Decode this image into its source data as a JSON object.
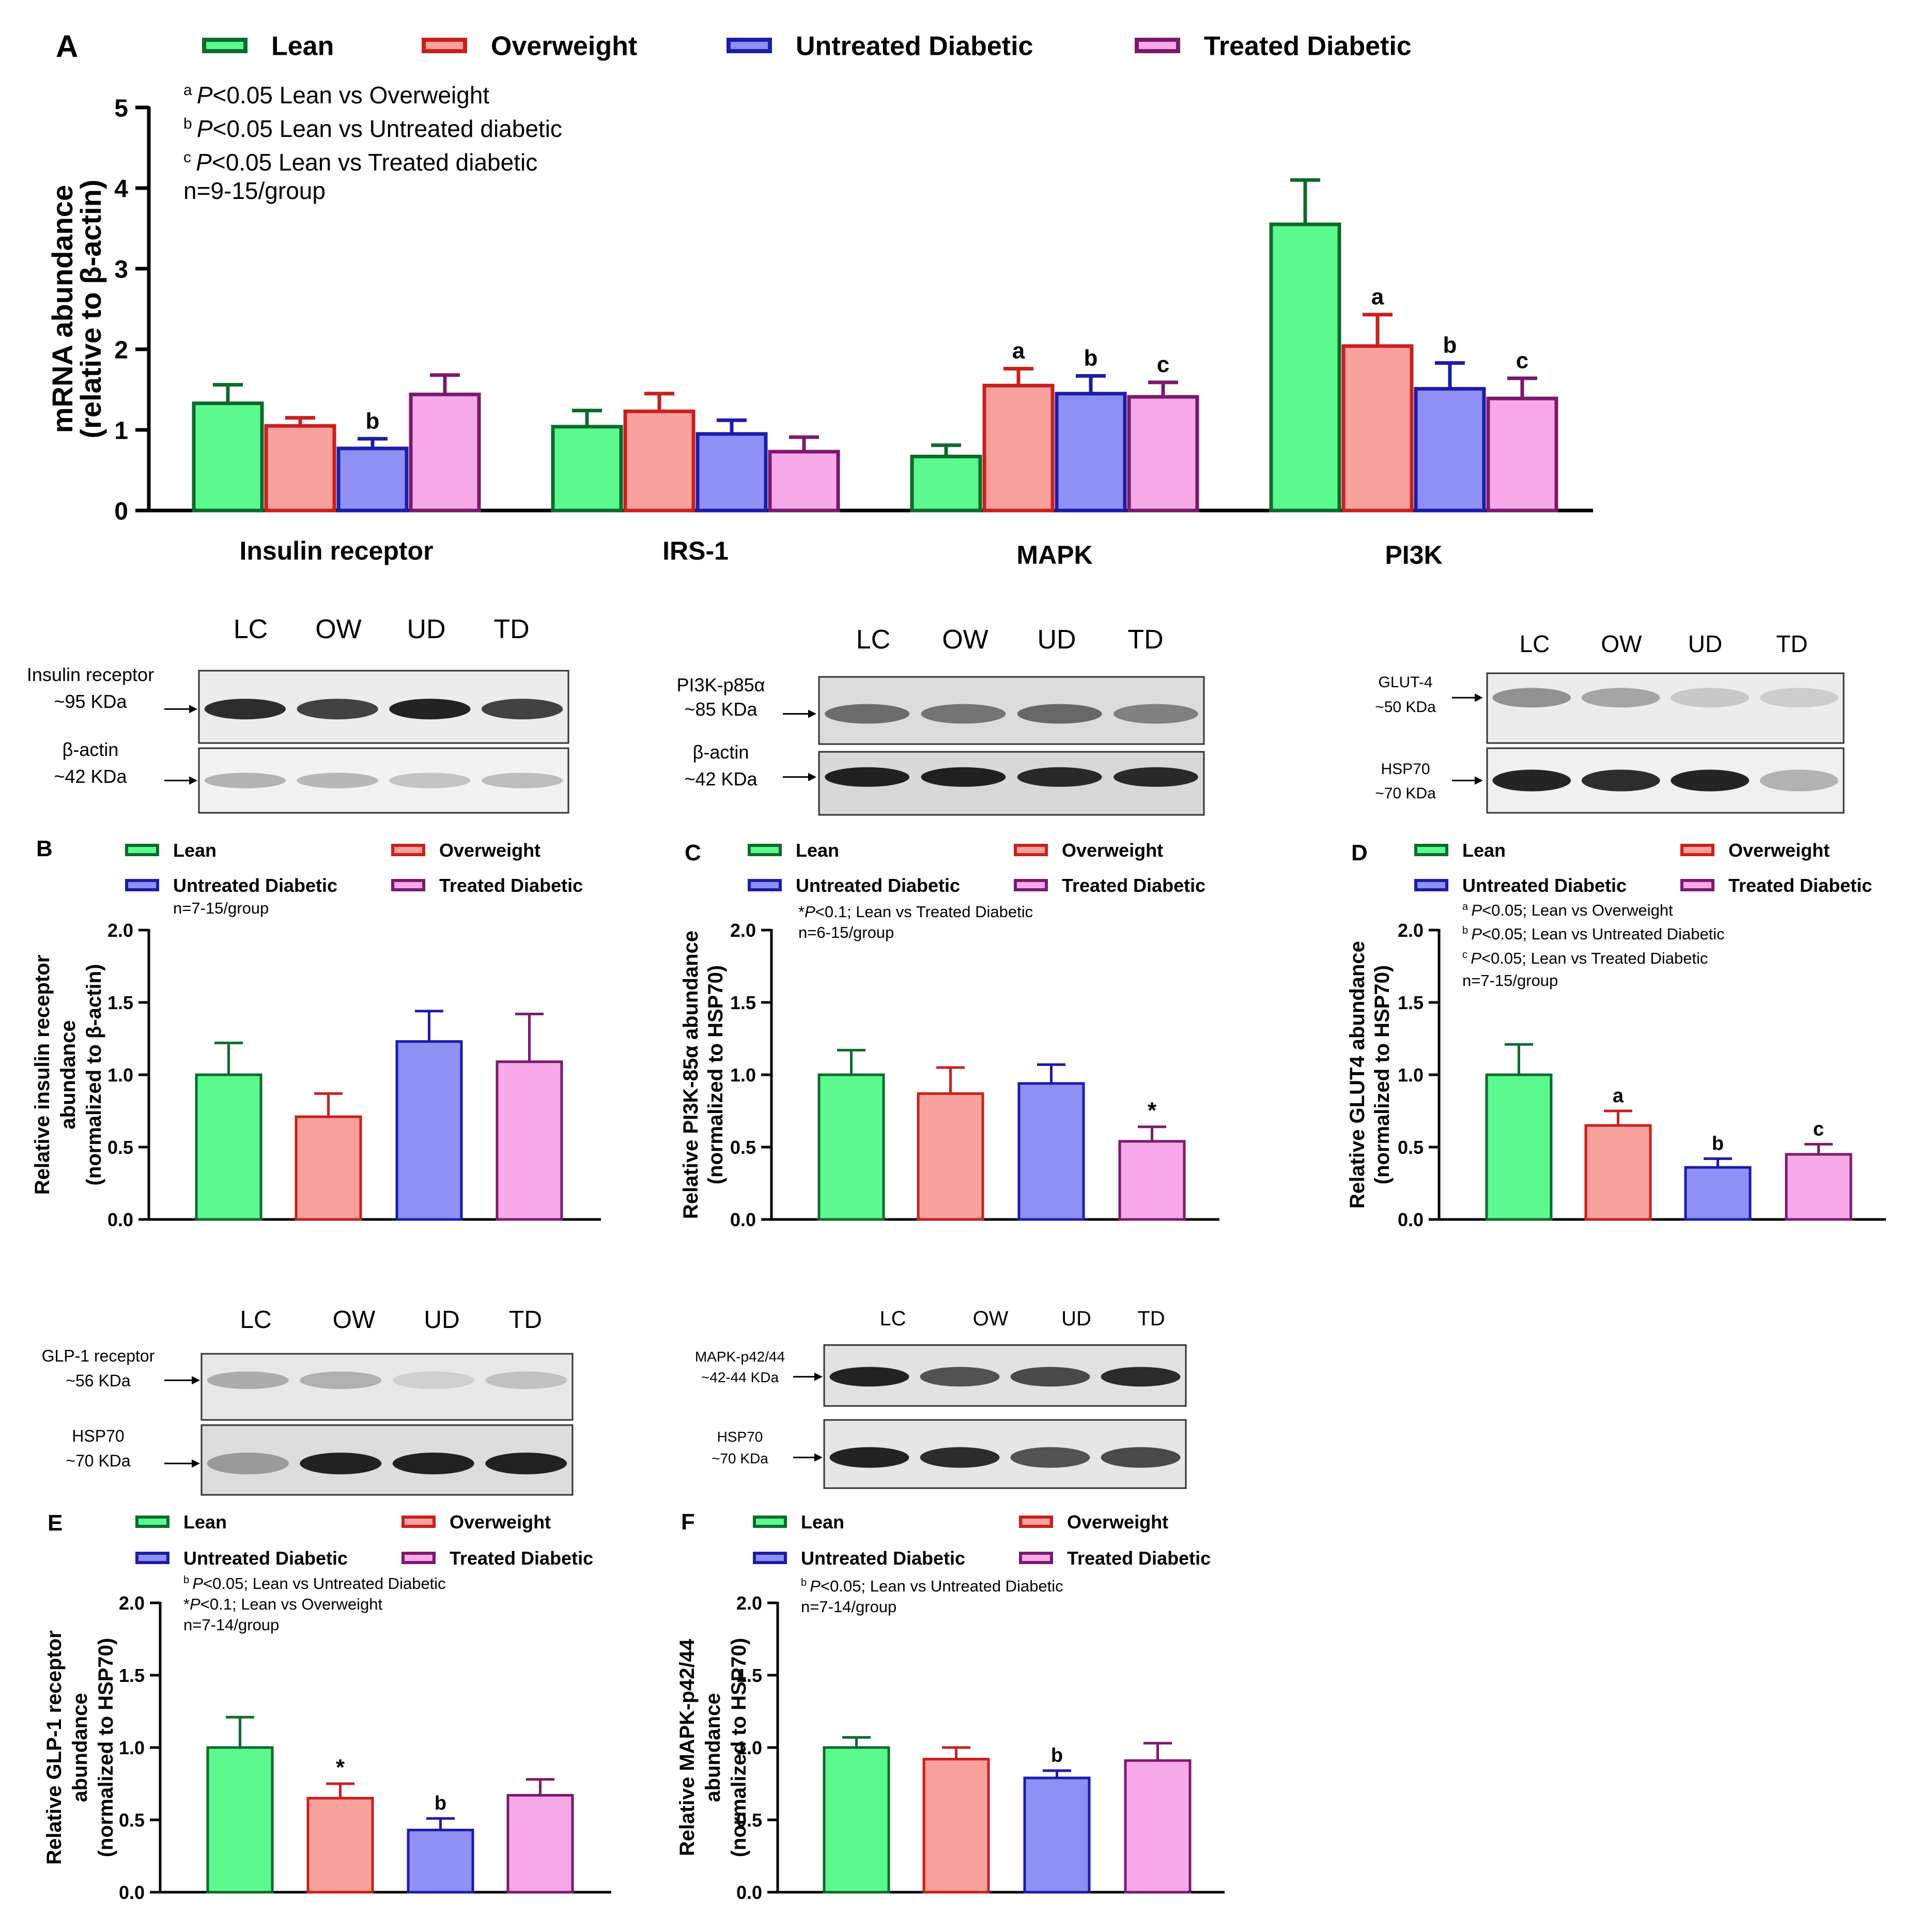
{
  "colors": {
    "lean": {
      "fill": "#5cf98f",
      "stroke": "#0d6b2c"
    },
    "overweight": {
      "fill": "#f9a19c",
      "stroke": "#c8201e"
    },
    "untreated": {
      "fill": "#8f8ff4",
      "stroke": "#1c1ca8"
    },
    "treated": {
      "fill": "#f8a9ea",
      "stroke": "#7a1a6b"
    }
  },
  "chart_data": [
    {
      "id": "A",
      "type": "bar",
      "panel_label": "A",
      "legend": [
        "Lean",
        "Overweight",
        "Untreated Diabetic",
        "Treated Diabetic"
      ],
      "annotations": [
        "a P<0.05 Lean vs Overweight",
        "b P<0.05 Lean vs Untreated diabetic",
        "c P<0.05 Lean vs Treated diabetic",
        "n=9-15/group"
      ],
      "ylabel_lines": [
        "mRNA abundance",
        "(relative to β-actin)"
      ],
      "ylim": [
        0,
        5
      ],
      "yticks": [
        "0",
        "1",
        "2",
        "3",
        "4",
        "5"
      ],
      "categories": [
        "Insulin receptor",
        "IRS-1",
        "MAPK",
        "PI3K"
      ],
      "series": [
        {
          "name": "Lean",
          "values": [
            1.33,
            1.04,
            0.67,
            3.55
          ],
          "errors": [
            0.23,
            0.2,
            0.14,
            0.55
          ],
          "sig": [
            "",
            "",
            "",
            ""
          ]
        },
        {
          "name": "Overweight",
          "values": [
            1.05,
            1.23,
            1.55,
            2.04
          ],
          "errors": [
            0.1,
            0.22,
            0.21,
            0.39
          ],
          "sig": [
            "",
            "",
            "a",
            "a"
          ]
        },
        {
          "name": "Untreated Diabetic",
          "values": [
            0.77,
            0.95,
            1.45,
            1.51
          ],
          "errors": [
            0.12,
            0.17,
            0.22,
            0.32
          ],
          "sig": [
            "b",
            "",
            "b",
            "b"
          ]
        },
        {
          "name": "Treated Diabetic",
          "values": [
            1.44,
            0.73,
            1.41,
            1.39
          ],
          "errors": [
            0.24,
            0.18,
            0.18,
            0.25
          ],
          "sig": [
            "",
            "",
            "c",
            "c"
          ]
        }
      ]
    },
    {
      "id": "B",
      "type": "bar",
      "panel_label": "B",
      "legend": [
        "Lean",
        "Overweight",
        "Untreated Diabetic",
        "Treated Diabetic"
      ],
      "annotations": [
        "n=7-15/group"
      ],
      "ylabel_lines": [
        "Relative insulin receptor",
        "abundance",
        "(normalized to β-actin)"
      ],
      "ylim": [
        0,
        2
      ],
      "yticks": [
        "0.0",
        "0.5",
        "1.0",
        "1.5",
        "2.0"
      ],
      "categories": [
        "Lean",
        "Overweight",
        "Untreated Diabetic",
        "Treated Diabetic"
      ],
      "values": [
        1.0,
        0.71,
        1.23,
        1.09
      ],
      "errors": [
        0.22,
        0.16,
        0.21,
        0.33
      ],
      "sig": [
        "",
        "",
        "",
        ""
      ]
    },
    {
      "id": "C",
      "type": "bar",
      "panel_label": "C",
      "legend": [
        "Lean",
        "Overweight",
        "Untreated Diabetic",
        "Treated Diabetic"
      ],
      "annotations": [
        "*P<0.1; Lean vs Treated Diabetic",
        "n=6-15/group"
      ],
      "ylabel_lines": [
        "Relative PI3K-85α abundance",
        "(normalized to HSP70)"
      ],
      "ylim": [
        0,
        2
      ],
      "yticks": [
        "0.0",
        "0.5",
        "1.0",
        "1.5",
        "2.0"
      ],
      "categories": [
        "Lean",
        "Overweight",
        "Untreated Diabetic",
        "Treated Diabetic"
      ],
      "values": [
        1.0,
        0.87,
        0.94,
        0.54
      ],
      "errors": [
        0.17,
        0.18,
        0.13,
        0.1
      ],
      "sig": [
        "",
        "",
        "",
        "*"
      ]
    },
    {
      "id": "D",
      "type": "bar",
      "panel_label": "D",
      "legend": [
        "Lean",
        "Overweight",
        "Untreated Diabetic",
        "Treated Diabetic"
      ],
      "annotations": [
        "aP<0.05; Lean vs Overweight",
        "bP<0.05; Lean vs Untreated Diabetic",
        "cP<0.05; Lean vs Treated Diabetic",
        "n=7-15/group"
      ],
      "ylabel_lines": [
        "Relative GLUT4 abundance",
        "(normalized to HSP70)"
      ],
      "ylim": [
        0,
        2
      ],
      "yticks": [
        "0.0",
        "0.5",
        "1.0",
        "1.5",
        "2.0"
      ],
      "categories": [
        "Lean",
        "Overweight",
        "Untreated Diabetic",
        "Treated Diabetic"
      ],
      "values": [
        1.0,
        0.65,
        0.36,
        0.45
      ],
      "errors": [
        0.21,
        0.1,
        0.06,
        0.07
      ],
      "sig": [
        "",
        "a",
        "b",
        "c"
      ]
    },
    {
      "id": "E",
      "type": "bar",
      "panel_label": "E",
      "legend": [
        "Lean",
        "Overweight",
        "Untreated Diabetic",
        "Treated Diabetic"
      ],
      "annotations": [
        "bP<0.05; Lean vs Untreated Diabetic",
        "*P<0.1; Lean vs Overweight",
        "n=7-14/group"
      ],
      "ylabel_lines": [
        "Relative GLP-1 receptor",
        "abundance",
        "(normalized to HSP70)"
      ],
      "ylim": [
        0,
        2
      ],
      "yticks": [
        "0.0",
        "0.5",
        "1.0",
        "1.5",
        "2.0"
      ],
      "categories": [
        "Lean",
        "Overweight",
        "Untreated Diabetic",
        "Treated Diabetic"
      ],
      "values": [
        1.0,
        0.65,
        0.43,
        0.67
      ],
      "errors": [
        0.21,
        0.1,
        0.08,
        0.11
      ],
      "sig": [
        "",
        "*",
        "b",
        ""
      ]
    },
    {
      "id": "F",
      "type": "bar",
      "panel_label": "F",
      "legend": [
        "Lean",
        "Overweight",
        "Untreated Diabetic",
        "Treated Diabetic"
      ],
      "annotations": [
        "bP<0.05; Lean vs Untreated Diabetic",
        "n=7-14/group"
      ],
      "ylabel_lines": [
        "Relative MAPK-p42/44",
        "abundance",
        "(normalized to HSP70)"
      ],
      "ylim": [
        0,
        2
      ],
      "yticks": [
        "0.0",
        "0.5",
        "1.0",
        "1.5",
        "2.0"
      ],
      "categories": [
        "Lean",
        "Overweight",
        "Untreated Diabetic",
        "Treated Diabetic"
      ],
      "values": [
        1.0,
        0.92,
        0.79,
        0.91
      ],
      "errors": [
        0.07,
        0.08,
        0.05,
        0.12
      ],
      "sig": [
        "",
        "",
        "b",
        ""
      ]
    }
  ],
  "blots": [
    {
      "id": "ir",
      "lanes": [
        "LC",
        "OW",
        "UD",
        "TD"
      ],
      "rows": [
        {
          "label_lines": [
            "Insulin receptor",
            "~95 KDa"
          ],
          "bands": [
            0.95,
            0.85,
            1.0,
            0.85
          ],
          "background": "#ececec"
        },
        {
          "label_lines": [
            "β-actin",
            "~42 KDa"
          ],
          "bands": [
            0.3,
            0.28,
            0.22,
            0.25
          ],
          "background": "#f2f2f2"
        }
      ]
    },
    {
      "id": "pi3k",
      "lanes": [
        "LC",
        "OW",
        "UD",
        "TD"
      ],
      "rows": [
        {
          "label_lines": [
            "PI3K-p85α",
            "~85 KDa"
          ],
          "bands": [
            0.6,
            0.55,
            0.62,
            0.5
          ],
          "background": "#dcdcdc"
        },
        {
          "label_lines": [
            "β-actin",
            "~42 KDa"
          ],
          "bands": [
            1.0,
            1.0,
            0.95,
            0.95
          ],
          "background": "#d8d8d8"
        }
      ]
    },
    {
      "id": "glut4",
      "lanes": [
        "LC",
        "OW",
        "UD",
        "TD"
      ],
      "rows": [
        {
          "label_lines": [
            "GLUT-4",
            "~50 KDa"
          ],
          "bands": [
            0.45,
            0.35,
            0.18,
            0.15
          ],
          "background": "#ececec"
        },
        {
          "label_lines": [
            "HSP70",
            "~70 KDa"
          ],
          "bands": [
            1.0,
            0.95,
            1.0,
            0.3
          ],
          "background": "#f0f0f0"
        }
      ]
    },
    {
      "id": "glp1",
      "lanes": [
        "LC",
        "OW",
        "UD",
        "TD"
      ],
      "rows": [
        {
          "label_lines": [
            "GLP-1 receptor",
            "~56 KDa"
          ],
          "bands": [
            0.3,
            0.28,
            0.12,
            0.2
          ],
          "background": "#e8e8e8"
        },
        {
          "label_lines": [
            "HSP70",
            "~70 KDa"
          ],
          "bands": [
            0.35,
            1.0,
            1.0,
            1.0
          ],
          "background": "#dddddd"
        }
      ]
    },
    {
      "id": "mapk",
      "lanes": [
        "LC",
        "OW",
        "UD",
        "TD"
      ],
      "rows": [
        {
          "label_lines": [
            "MAPK-p42/44",
            "~42-44 KDa"
          ],
          "bands": [
            1.0,
            0.75,
            0.8,
            0.95
          ],
          "background": "#e2e2e2"
        },
        {
          "label_lines": [
            "HSP70",
            "~70 KDa"
          ],
          "bands": [
            1.0,
            0.95,
            0.75,
            0.8
          ],
          "background": "#e6e6e6"
        }
      ]
    }
  ]
}
